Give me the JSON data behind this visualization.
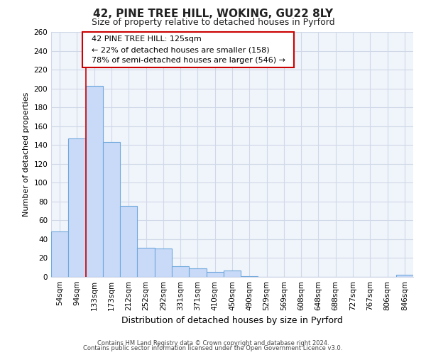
{
  "title": "42, PINE TREE HILL, WOKING, GU22 8LY",
  "subtitle": "Size of property relative to detached houses in Pyrford",
  "xlabel": "Distribution of detached houses by size in Pyrford",
  "ylabel": "Number of detached properties",
  "bar_labels": [
    "54sqm",
    "94sqm",
    "133sqm",
    "173sqm",
    "212sqm",
    "252sqm",
    "292sqm",
    "331sqm",
    "371sqm",
    "410sqm",
    "450sqm",
    "490sqm",
    "529sqm",
    "569sqm",
    "608sqm",
    "648sqm",
    "688sqm",
    "727sqm",
    "767sqm",
    "806sqm",
    "846sqm"
  ],
  "bar_values": [
    48,
    147,
    203,
    143,
    75,
    31,
    30,
    11,
    9,
    5,
    7,
    1,
    0,
    0,
    0,
    0,
    0,
    0,
    0,
    0,
    2
  ],
  "bar_fill_color": "#c9daf8",
  "bar_edge_color": "#6fa8dc",
  "vline_x": 1.5,
  "vline_color": "#cc0000",
  "annotation_title": "42 PINE TREE HILL: 125sqm",
  "annotation_line1": "← 22% of detached houses are smaller (158)",
  "annotation_line2": "78% of semi-detached houses are larger (546) →",
  "annotation_box_facecolor": "white",
  "annotation_box_edgecolor": "#cc0000",
  "ylim": [
    0,
    260
  ],
  "yticks": [
    0,
    20,
    40,
    60,
    80,
    100,
    120,
    140,
    160,
    180,
    200,
    220,
    240,
    260
  ],
  "grid_color": "#d0d8e8",
  "bg_color": "#ffffff",
  "plot_bg_color": "#f0f4fb",
  "footer1": "Contains HM Land Registry data © Crown copyright and database right 2024.",
  "footer2": "Contains public sector information licensed under the Open Government Licence v3.0.",
  "title_fontsize": 11,
  "subtitle_fontsize": 9,
  "ylabel_fontsize": 8,
  "xlabel_fontsize": 9,
  "tick_fontsize": 7.5,
  "annotation_fontsize": 8,
  "footer_fontsize": 6
}
